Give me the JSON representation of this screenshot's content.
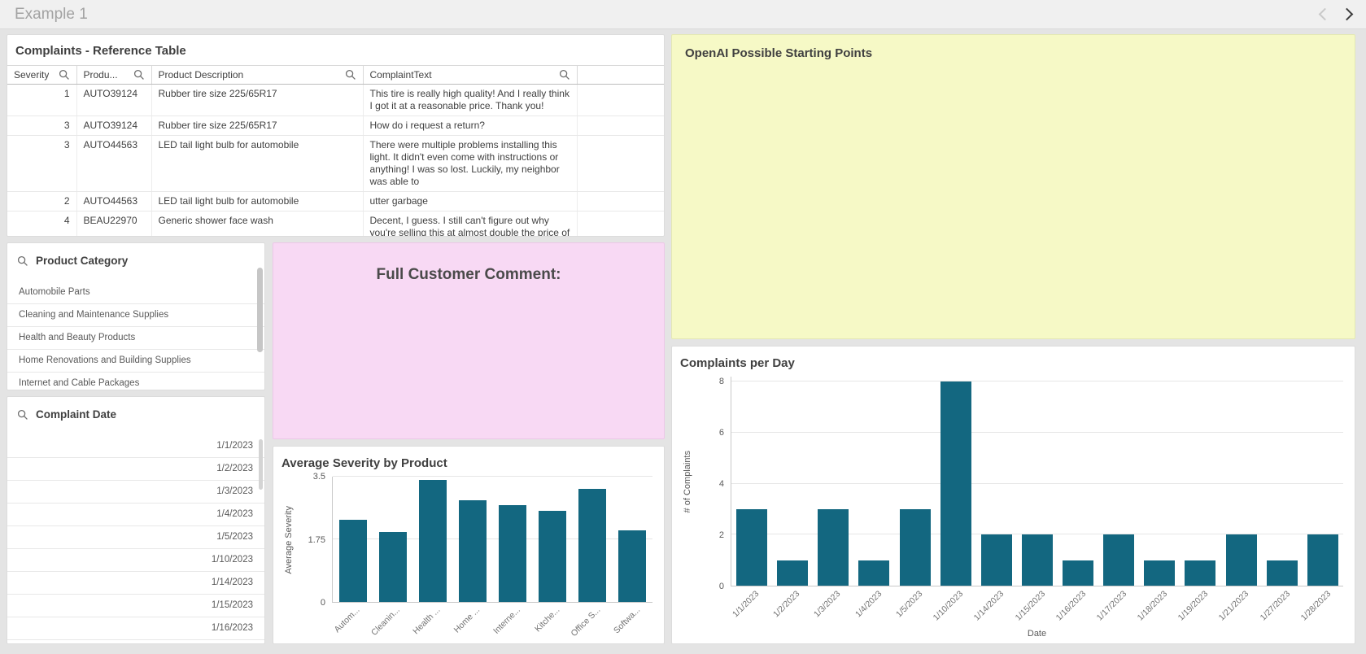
{
  "topbar": {
    "title": "Example 1",
    "icons": {
      "prev": "chevron-left",
      "next": "chevron-right"
    }
  },
  "reference_table": {
    "title": "Complaints - Reference Table",
    "columns": [
      "Severity",
      "Produ...",
      "Product Description",
      "ComplaintText"
    ],
    "search_icon": "magnifier",
    "rows": [
      {
        "severity": "1",
        "product": "AUTO39124",
        "description": "Rubber tire size 225/65R17",
        "complaint": "This tire is really high quality! And I really think I got it at a reasonable price. Thank you!"
      },
      {
        "severity": "3",
        "product": "AUTO39124",
        "description": "Rubber tire size 225/65R17",
        "complaint": "How do i request a return?"
      },
      {
        "severity": "3",
        "product": "AUTO44563",
        "description": "LED tail light bulb for automobile",
        "complaint": "There were multiple problems installing this light. It didn't even come with instructions or anything! I was so lost. Luckily, my neighbor was able to"
      },
      {
        "severity": "2",
        "product": "AUTO44563",
        "description": "LED tail light bulb for automobile",
        "complaint": "utter garbage"
      },
      {
        "severity": "4",
        "product": "BEAU22970",
        "description": "Generic shower face wash",
        "complaint": "Decent, I guess. I still can't figure out why you're selling this at almost double the price of the"
      }
    ]
  },
  "openai_panel": {
    "title": "OpenAI Possible Starting Points",
    "bg": "#f6f9c6"
  },
  "comment_panel": {
    "title": "Full Customer Comment:",
    "bg": "#f8d9f4"
  },
  "product_category": {
    "title": "Product Category",
    "items": [
      "Automobile Parts",
      "Cleaning and Maintenance Supplies",
      "Health and Beauty Products",
      "Home Renovations and Building Supplies",
      "Internet and Cable Packages"
    ]
  },
  "complaint_date": {
    "title": "Complaint Date",
    "items": [
      "1/1/2023",
      "1/2/2023",
      "1/3/2023",
      "1/4/2023",
      "1/5/2023",
      "1/10/2023",
      "1/14/2023",
      "1/15/2023",
      "1/16/2023"
    ]
  },
  "chart_data": [
    {
      "type": "bar",
      "title": "Average Severity by Product",
      "categories": [
        "Autom...",
        "Cleanin...",
        "Health ...",
        "Home ...",
        "Interne...",
        "Kitche...",
        "Office S...",
        "Softwa..."
      ],
      "values": [
        2.3,
        1.95,
        3.4,
        2.85,
        2.7,
        2.55,
        3.15,
        2.0
      ],
      "xlabel": "",
      "ylabel": "Average Severity",
      "yticks": [
        0,
        1.75,
        3.5
      ],
      "ylim": [
        0,
        3.5
      ],
      "grid": true,
      "bar_color": "#136780"
    },
    {
      "type": "bar",
      "title": "Complaints per Day",
      "categories": [
        "1/1/2023",
        "1/2/2023",
        "1/3/2023",
        "1/4/2023",
        "1/5/2023",
        "1/10/2023",
        "1/14/2023",
        "1/15/2023",
        "1/16/2023",
        "1/17/2023",
        "1/18/2023",
        "1/19/2023",
        "1/21/2023",
        "1/27/2023",
        "1/28/2023"
      ],
      "values": [
        3,
        1,
        3,
        1,
        3,
        8,
        2,
        2,
        1,
        2,
        1,
        1,
        2,
        1,
        2
      ],
      "xlabel": "Date",
      "ylabel": "# of Complaints",
      "yticks": [
        0,
        2,
        4,
        6,
        8
      ],
      "ylim": [
        0,
        8.2
      ],
      "grid": true,
      "bar_color": "#136780"
    }
  ]
}
